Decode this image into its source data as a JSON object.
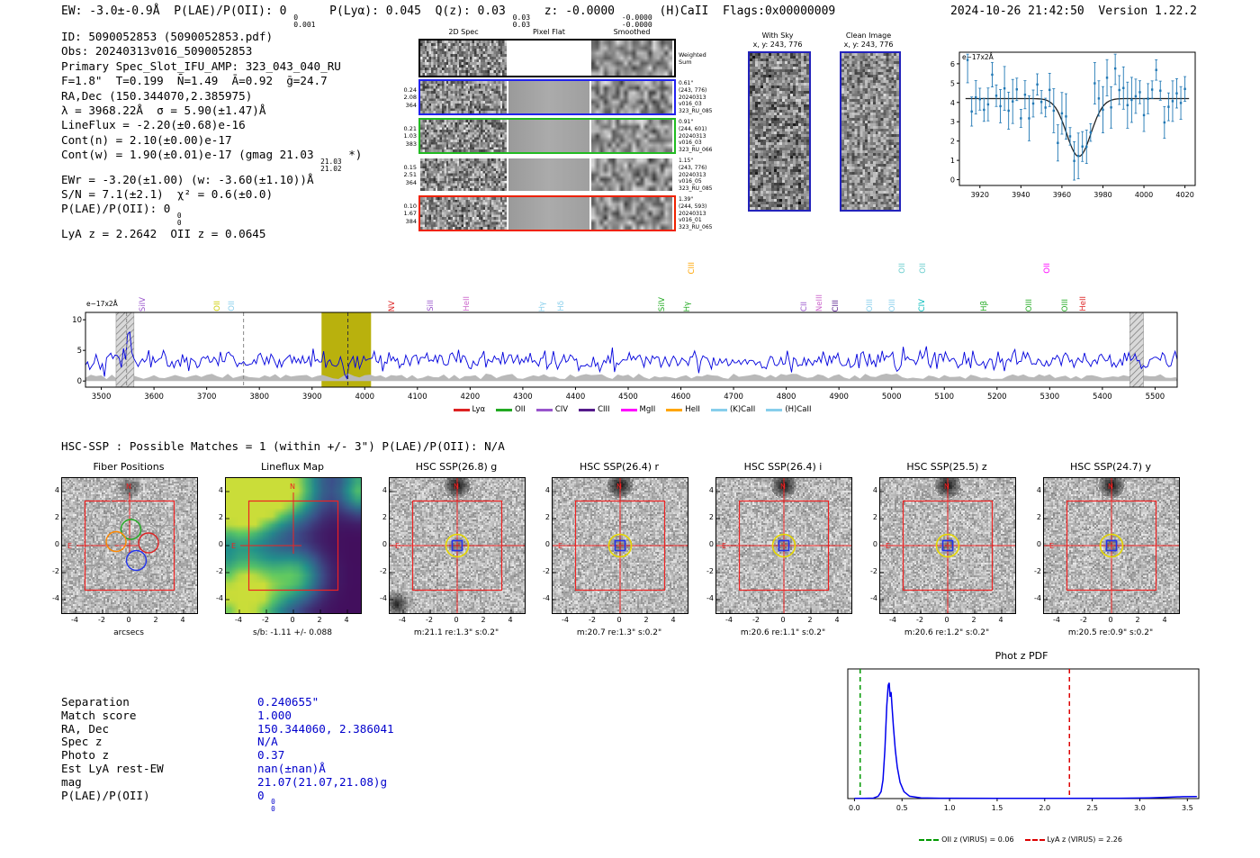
{
  "header": {
    "left_segments": [
      "EW: -3.0±-0.9Å  P(LAE)/P(OII): 0 ",
      [
        "0",
        "0.001"
      ],
      "  P(Lyα): 0.045  Q(z): 0.03 ",
      [
        "0.03",
        "0.03"
      ],
      "  z: -0.0000 ",
      [
        "-0.0000",
        "-0.0000"
      ],
      " (H)CaII  Flags:0x00000009"
    ],
    "datetime": "2024-10-26 21:42:50",
    "version": "Version 1.22.2"
  },
  "info": {
    "lines": [
      [
        "ID: 5090052853 (5090052853.pdf)"
      ],
      [
        "Obs: 20240313v016_5090052853"
      ],
      [
        "Primary Spec_Slot_IFU_AMP: 323_043_040_RU"
      ],
      [
        "F=1.8\"  T=0.199  N̄=1.49  Ā=0.92  ḡ=24.7"
      ],
      [
        "RA,Dec (150.344070,2.385975)"
      ],
      [
        "λ = 3968.22Å  σ = 5.90(±1.47)Å"
      ],
      [
        "LineFlux = -2.20(±0.68)e-16"
      ],
      [
        "Cont(n) = 2.10(±0.00)e-17"
      ],
      [
        "Cont(w) = 1.90(±0.01)e-17 (gmag 21.03 ",
        [
          "21.03",
          "21.02"
        ],
        " *)"
      ],
      [
        "EWr = -3.20(±1.00) (w: -3.60(±1.10))Å"
      ],
      [
        "S/N = 7.1(±2.1)  χ² = 0.6(±0.0)"
      ],
      [
        "P(LAE)/P(OII): 0 ",
        [
          "0",
          "0"
        ]
      ],
      [
        "LyA z = 2.2642  OII z = 0.0645"
      ]
    ]
  },
  "spec2d": {
    "headers": [
      "2D Spec",
      "Pixel Flat",
      "Smoothed"
    ],
    "rows": [
      {
        "border": "#000000",
        "left": [],
        "right": [
          "Weighted",
          "Sum"
        ]
      },
      {
        "border": "#2222ee",
        "left": [
          "0.24",
          "2.08",
          "364"
        ],
        "right": [
          "0.61\"",
          "(243, 776)",
          "20240313",
          "v016_03",
          "323_RU_085"
        ]
      },
      {
        "border": "#22bb22",
        "left": [
          "0.21",
          "1.03",
          "383"
        ],
        "right": [
          "0.91\"",
          "(244, 601)",
          "20240313",
          "v016_03",
          "323_RU_066"
        ]
      },
      {
        "border": "#ffffff",
        "left": [
          "0.15",
          "2.51",
          "364"
        ],
        "right": [
          "1.15\"",
          "(243, 776)",
          "20240313",
          "v016_05",
          "323_RU_085"
        ]
      },
      {
        "border": "#ee2200",
        "left": [
          "0.10",
          "1.67",
          "384"
        ],
        "right": [
          "1.39\"",
          "(244, 593)",
          "20240313",
          "v016_01",
          "323_RU_065"
        ]
      }
    ]
  },
  "skypanels": {
    "with_sky": {
      "title": "With Sky",
      "subtitle": "x, y: 243, 776"
    },
    "clean": {
      "title": "Clean Image",
      "subtitle": "x, y: 243, 776"
    }
  },
  "hsc": {
    "header": "HSC-SSP : Possible Matches = 1 (within +/- 3\")  P(LAE)/P(OII): N/A",
    "ticks": [
      -4,
      -2,
      0,
      2,
      4
    ],
    "cutouts": [
      {
        "title": "Fiber Positions",
        "caption": "arcsecs",
        "type": "fiber"
      },
      {
        "title": "Lineflux Map",
        "caption": "s/b: -1.11 +/- 0.088",
        "type": "lineflux"
      },
      {
        "title": "HSC SSP(26.8) g",
        "caption": "m:21.1 re:1.3\" s:0.2\"",
        "type": "hsc"
      },
      {
        "title": "HSC SSP(26.4) r",
        "caption": "m:20.7 re:1.3\" s:0.2\"",
        "type": "hsc"
      },
      {
        "title": "HSC SSP(26.4) i",
        "caption": "m:20.6 re:1.1\" s:0.2\"",
        "type": "hsc"
      },
      {
        "title": "HSC SSP(25.5) z",
        "caption": "m:20.6 re:1.2\" s:0.2\"",
        "type": "hsc"
      },
      {
        "title": "HSC SSP(24.7) y",
        "caption": "m:20.5 re:0.9\" s:0.2\"",
        "type": "hsc"
      }
    ]
  },
  "match": {
    "value_color": "#0000cc",
    "rows": [
      {
        "label": "Separation",
        "value": [
          "0.240655\""
        ]
      },
      {
        "label": "Match score",
        "value": [
          "1.000"
        ]
      },
      {
        "label": "RA, Dec",
        "value": [
          "150.344060, 2.386041"
        ]
      },
      {
        "label": "Spec z",
        "value": [
          "N/A"
        ]
      },
      {
        "label": "Photo z",
        "value": [
          "0.37"
        ]
      },
      {
        "label": "Est LyA rest-EW",
        "value": [
          "nan(±nan)Å"
        ]
      },
      {
        "label": "mag",
        "value": [
          "21.07(21.07,21.08)g"
        ]
      },
      {
        "label": "P(LAE)/P(OII)",
        "value": [
          "0 ",
          [
            "0",
            "0"
          ]
        ]
      }
    ]
  },
  "chart_data": [
    {
      "id": "line_fit",
      "type": "errorbar",
      "ylabel_note": "e−17x2Å",
      "x_range": [
        3910,
        4025
      ],
      "y_range": [
        -0.3,
        6.6
      ],
      "x_ticks": [
        3920,
        3940,
        3960,
        3980,
        4000,
        4020
      ],
      "y_ticks": [
        0,
        1,
        2,
        3,
        4,
        5,
        6
      ],
      "fit": {
        "continuum": 4.2,
        "center": 3968.22,
        "sigma": 5.9,
        "depth": 3.0
      },
      "point_step": 2,
      "noise_sigma": 0.8,
      "errbar": 0.75,
      "seed": 7,
      "marker_color": "#1f77b4",
      "fit_color": "#222222"
    },
    {
      "id": "full_spectrum",
      "type": "line",
      "ylabel_note": "e−17x2Å",
      "x_range": [
        3470,
        5542
      ],
      "y_range": [
        -1.0,
        11.2
      ],
      "x_ticks": [
        3500,
        3600,
        3700,
        3800,
        3900,
        4000,
        4100,
        4200,
        4300,
        4400,
        4500,
        4600,
        4700,
        4800,
        4900,
        5000,
        5100,
        5200,
        5300,
        5400,
        5500
      ],
      "y_ticks": [
        0,
        5,
        10
      ],
      "baseline": 3.35,
      "noise_sigma": 0.8,
      "seed": 42,
      "dip": {
        "center": 3968.22,
        "sigma": 5.9,
        "depth": 2.4
      },
      "spike": {
        "center": 3552,
        "height": 6.4
      },
      "highlight_band": {
        "x0": 3918,
        "x1": 4012,
        "color": "#b5ad00"
      },
      "dashed_lines": [
        {
          "x": 3548,
          "color": "#888888"
        },
        {
          "x": 3770,
          "color": "#888888"
        },
        {
          "x": 3968,
          "color": "#333333"
        }
      ],
      "hatch_bands": [
        [
          3528,
          3562
        ],
        [
          5452,
          5478
        ]
      ],
      "noise_floor": {
        "mean": 0.75,
        "amp": 0.45,
        "color": "#b9b9b9"
      },
      "line_color": "#0000dd",
      "legend": [
        {
          "label": "Lyα",
          "color": "#dd2222"
        },
        {
          "label": "OII",
          "color": "#22aa22"
        },
        {
          "label": "CIV",
          "color": "#9955cc"
        },
        {
          "label": "CIII",
          "color": "#551a8b"
        },
        {
          "label": "MgII",
          "color": "#ff00ff"
        },
        {
          "label": "HeII",
          "color": "#ffa500"
        },
        {
          "label": "(K)CaII",
          "color": "#87ceeb"
        },
        {
          "label": "(H)CaII",
          "color": "#87ceeb"
        }
      ],
      "line_labels": [
        {
          "t": "SiIV",
          "x": 3581,
          "c": "#9955cc",
          "r": 1
        },
        {
          "t": "OII",
          "x": 3723,
          "c": "#cccc00",
          "r": 1
        },
        {
          "t": "OII",
          "x": 3750,
          "c": "#87ceeb",
          "r": 1
        },
        {
          "t": "NV",
          "x": 4054,
          "c": "#dd2222",
          "r": 1
        },
        {
          "t": "SiII",
          "x": 4128,
          "c": "#9955cc",
          "r": 1
        },
        {
          "t": "HeII",
          "x": 4196,
          "c": "#cc66cc",
          "r": 1
        },
        {
          "t": "Hγ",
          "x": 4339,
          "c": "#87ceeb",
          "r": 1
        },
        {
          "t": "Hδ",
          "x": 4375,
          "c": "#87ceeb",
          "r": 1
        },
        {
          "t": "SiIV",
          "x": 4567,
          "c": "#22aa22",
          "r": 1
        },
        {
          "t": "Hγ",
          "x": 4614,
          "c": "#22aa22",
          "r": 1
        },
        {
          "t": "CIII",
          "x": 4623,
          "c": "#ffa500",
          "r": 0
        },
        {
          "t": "CII",
          "x": 4836,
          "c": "#9955cc",
          "r": 1
        },
        {
          "t": "NeIII",
          "x": 4865,
          "c": "#cc66cc",
          "r": 1
        },
        {
          "t": "CIII",
          "x": 4896,
          "c": "#551a8b",
          "r": 1
        },
        {
          "t": "OIII",
          "x": 4961,
          "c": "#87ceeb",
          "r": 1
        },
        {
          "t": "OIII",
          "x": 5004,
          "c": "#87ceeb",
          "r": 1
        },
        {
          "t": "OII",
          "x": 5022,
          "c": "#66cccc",
          "r": 0
        },
        {
          "t": "CIV",
          "x": 5060,
          "c": "#00bbbb",
          "r": 1
        },
        {
          "t": "OII",
          "x": 5062,
          "c": "#66cccc",
          "r": 0
        },
        {
          "t": "Hβ",
          "x": 5178,
          "c": "#22aa22",
          "r": 1
        },
        {
          "t": "OIII",
          "x": 5263,
          "c": "#22aa22",
          "r": 1
        },
        {
          "t": "OII",
          "x": 5298,
          "c": "#ff00ff",
          "r": 0
        },
        {
          "t": "OIII",
          "x": 5332,
          "c": "#22aa22",
          "r": 1
        },
        {
          "t": "HeII",
          "x": 5366,
          "c": "#dd2222",
          "r": 1
        }
      ]
    },
    {
      "id": "photz_pdf",
      "type": "line",
      "title": "Phot z PDF",
      "x_range": [
        -0.07,
        3.62
      ],
      "y_range": [
        0,
        1.12
      ],
      "x_ticks": [
        0,
        0.5,
        1,
        1.5,
        2,
        2.5,
        3,
        3.5
      ],
      "curve_color": "#0000ee",
      "points": [
        [
          0,
          0.002
        ],
        [
          0.1,
          0.002
        ],
        [
          0.2,
          0.004
        ],
        [
          0.25,
          0.02
        ],
        [
          0.28,
          0.06
        ],
        [
          0.3,
          0.16
        ],
        [
          0.32,
          0.42
        ],
        [
          0.34,
          0.8
        ],
        [
          0.355,
          0.98
        ],
        [
          0.365,
          1.0
        ],
        [
          0.375,
          0.88
        ],
        [
          0.385,
          0.92
        ],
        [
          0.395,
          0.8
        ],
        [
          0.41,
          0.62
        ],
        [
          0.43,
          0.42
        ],
        [
          0.45,
          0.27
        ],
        [
          0.48,
          0.14
        ],
        [
          0.52,
          0.06
        ],
        [
          0.58,
          0.02
        ],
        [
          0.7,
          0.006
        ],
        [
          0.9,
          0.003
        ],
        [
          1.5,
          0.002
        ],
        [
          2.2,
          0.002
        ],
        [
          2.8,
          0.003
        ],
        [
          3.1,
          0.006
        ],
        [
          3.3,
          0.012
        ],
        [
          3.45,
          0.016
        ],
        [
          3.6,
          0.018
        ]
      ],
      "vlines": [
        {
          "x": 0.06,
          "color": "#009900",
          "label": "OII z (VIRUS) = 0.06"
        },
        {
          "x": 2.26,
          "color": "#dd0000",
          "label": "LyA z (VIRUS) = 2.26"
        }
      ]
    }
  ]
}
